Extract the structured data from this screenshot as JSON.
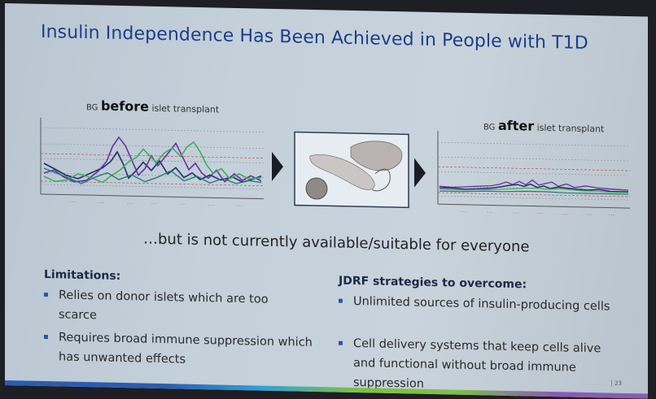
{
  "slide": {
    "title": "Insulin Independence Has Been Achieved in People with T1D",
    "before_caption": {
      "prefix": "BG",
      "emphasis": "before",
      "suffix": "islet transplant"
    },
    "after_caption": {
      "prefix": "BG",
      "emphasis": "after",
      "suffix": "islet transplant"
    },
    "tagline": "…but is not currently available/suitable for everyone",
    "limitations": {
      "heading": "Limitations:",
      "items": [
        "Relies on donor islets which are too scarce",
        "Requires broad immune suppression which has unwanted effects"
      ]
    },
    "strategies": {
      "heading": "JDRF strategies to overcome:",
      "items": [
        "Unlimited sources of insulin-producing cells",
        "Cell delivery systems that keep cells alive and functional without broad immune suppression"
      ]
    },
    "page_number": "23",
    "colors": {
      "title": "#1b3e8a",
      "line_purple": "#6a2ea0",
      "line_green": "#3fae5a",
      "line_navy": "#1f2f6a",
      "line_teal": "#247a7a",
      "bullet": "#2a55a8"
    }
  }
}
